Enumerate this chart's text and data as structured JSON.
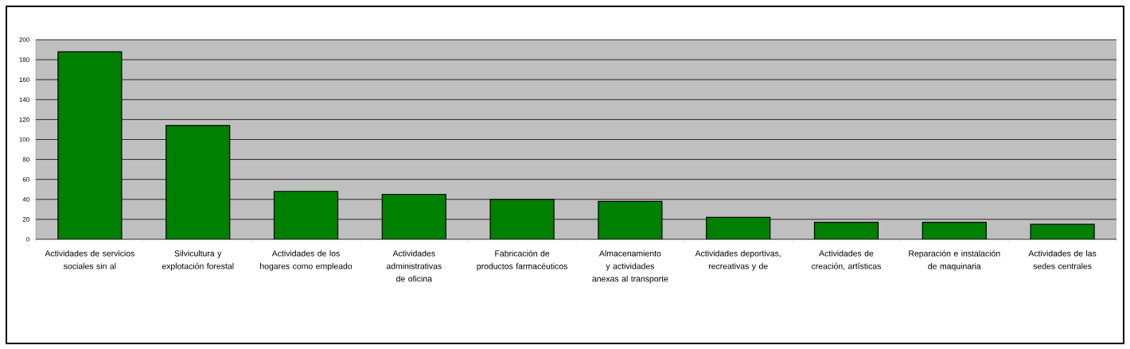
{
  "chart_data": {
    "type": "bar",
    "categories": [
      "Actividades de servicios sociales sin al",
      "Silvicultura y explotación forestal",
      "Actividades de los hogares como empleado",
      "Actividades administrativas de oficina",
      "Fabricación de productos farmacéuticos",
      "Almacenamiento y actividades anexas al transporte",
      "Actividades deportivas, recreativas y de",
      "Actividades de creación, artísticas",
      "Reparación e instalación de maquinaria",
      "Actividades de las sedes centrales"
    ],
    "values": [
      188,
      114,
      48,
      45,
      40,
      38,
      22,
      17,
      17,
      15
    ],
    "color": "#008000",
    "ylim": [
      0,
      200
    ],
    "yticks": [
      0,
      20,
      40,
      60,
      80,
      100,
      120,
      140,
      160,
      180,
      200
    ],
    "grid": "y"
  }
}
